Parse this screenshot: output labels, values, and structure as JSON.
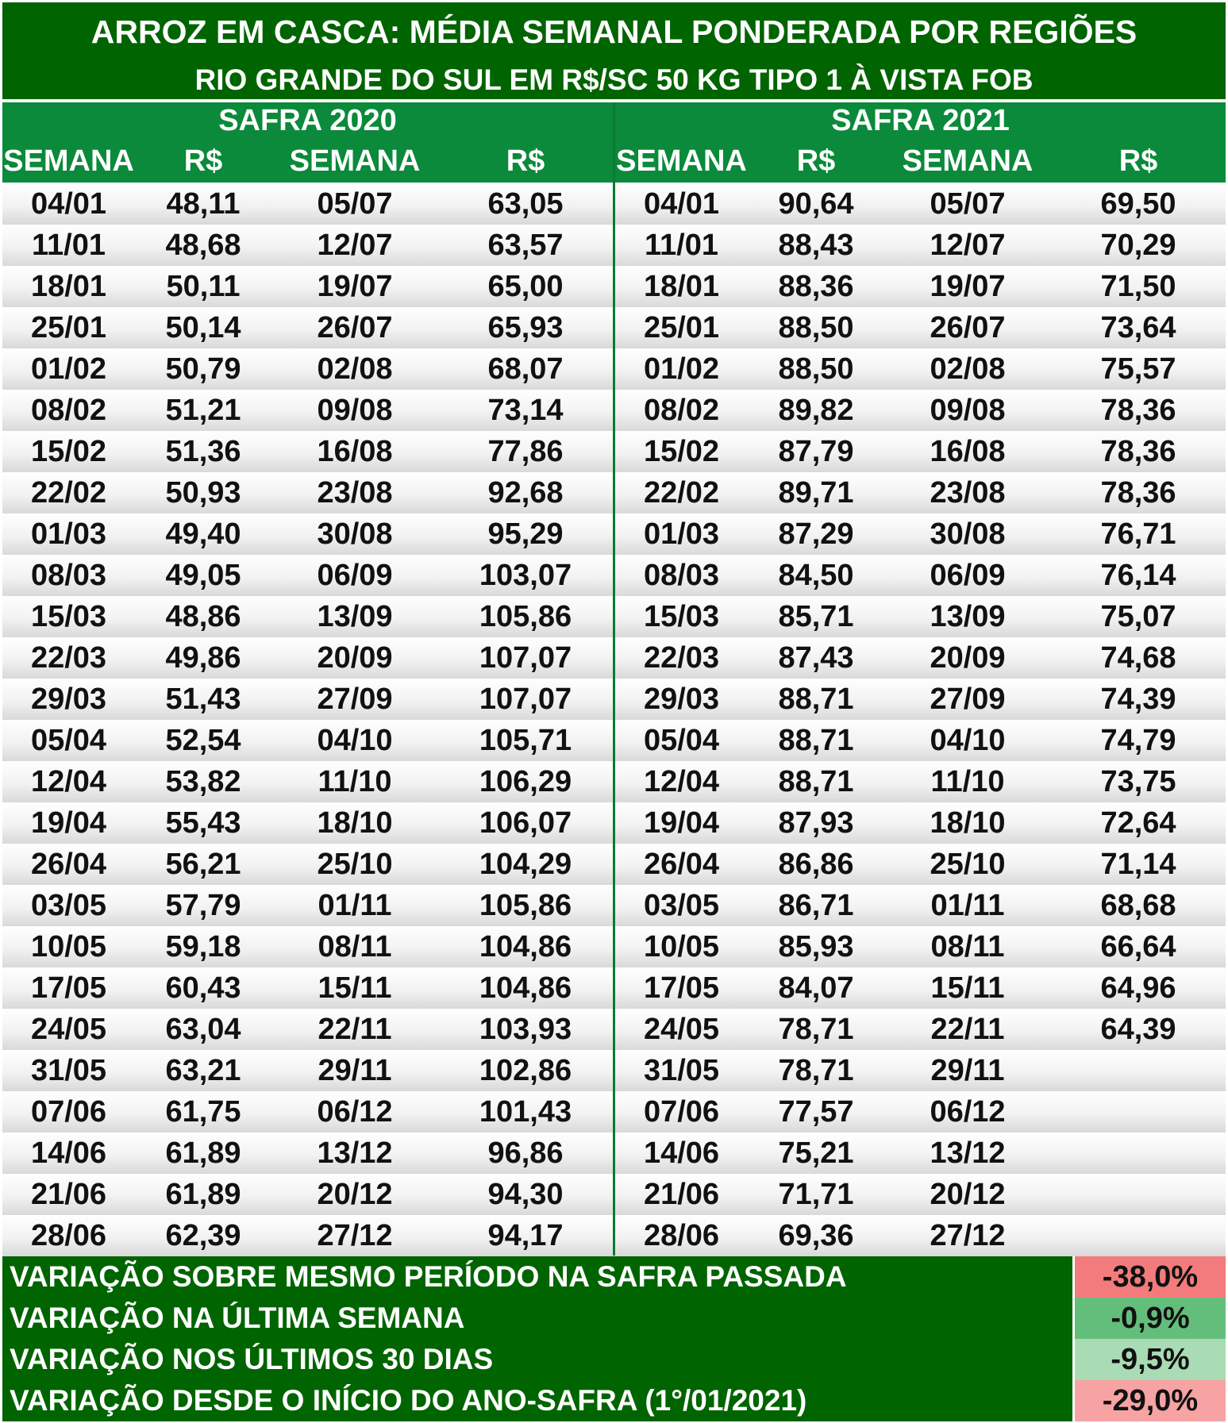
{
  "title": "ARROZ EM CASCA: MÉDIA SEMANAL PONDERADA POR REGIÕES",
  "subtitle": "RIO GRANDE DO SUL EM R$/SC 50 KG TIPO 1 À VISTA FOB",
  "safra_2020": {
    "label": "SAFRA 2020",
    "headers": [
      "SEMANA",
      "R$",
      "SEMANA",
      "R$"
    ]
  },
  "safra_2021": {
    "label": "SAFRA 2021",
    "headers": [
      "SEMANA",
      "R$",
      "SEMANA",
      "R$"
    ]
  },
  "rows": [
    [
      "04/01",
      "48,11",
      "05/07",
      "63,05",
      "04/01",
      "90,64",
      "05/07",
      "69,50"
    ],
    [
      "11/01",
      "48,68",
      "12/07",
      "63,57",
      "11/01",
      "88,43",
      "12/07",
      "70,29"
    ],
    [
      "18/01",
      "50,11",
      "19/07",
      "65,00",
      "18/01",
      "88,36",
      "19/07",
      "71,50"
    ],
    [
      "25/01",
      "50,14",
      "26/07",
      "65,93",
      "25/01",
      "88,50",
      "26/07",
      "73,64"
    ],
    [
      "01/02",
      "50,79",
      "02/08",
      "68,07",
      "01/02",
      "88,50",
      "02/08",
      "75,57"
    ],
    [
      "08/02",
      "51,21",
      "09/08",
      "73,14",
      "08/02",
      "89,82",
      "09/08",
      "78,36"
    ],
    [
      "15/02",
      "51,36",
      "16/08",
      "77,86",
      "15/02",
      "87,79",
      "16/08",
      "78,36"
    ],
    [
      "22/02",
      "50,93",
      "23/08",
      "92,68",
      "22/02",
      "89,71",
      "23/08",
      "78,36"
    ],
    [
      "01/03",
      "49,40",
      "30/08",
      "95,29",
      "01/03",
      "87,29",
      "30/08",
      "76,71"
    ],
    [
      "08/03",
      "49,05",
      "06/09",
      "103,07",
      "08/03",
      "84,50",
      "06/09",
      "76,14"
    ],
    [
      "15/03",
      "48,86",
      "13/09",
      "105,86",
      "15/03",
      "85,71",
      "13/09",
      "75,07"
    ],
    [
      "22/03",
      "49,86",
      "20/09",
      "107,07",
      "22/03",
      "87,43",
      "20/09",
      "74,68"
    ],
    [
      "29/03",
      "51,43",
      "27/09",
      "107,07",
      "29/03",
      "88,71",
      "27/09",
      "74,39"
    ],
    [
      "05/04",
      "52,54",
      "04/10",
      "105,71",
      "05/04",
      "88,71",
      "04/10",
      "74,79"
    ],
    [
      "12/04",
      "53,82",
      "11/10",
      "106,29",
      "12/04",
      "88,71",
      "11/10",
      "73,75"
    ],
    [
      "19/04",
      "55,43",
      "18/10",
      "106,07",
      "19/04",
      "87,93",
      "18/10",
      "72,64"
    ],
    [
      "26/04",
      "56,21",
      "25/10",
      "104,29",
      "26/04",
      "86,86",
      "25/10",
      "71,14"
    ],
    [
      "03/05",
      "57,79",
      "01/11",
      "105,86",
      "03/05",
      "86,71",
      "01/11",
      "68,68"
    ],
    [
      "10/05",
      "59,18",
      "08/11",
      "104,86",
      "10/05",
      "85,93",
      "08/11",
      "66,64"
    ],
    [
      "17/05",
      "60,43",
      "15/11",
      "104,86",
      "17/05",
      "84,07",
      "15/11",
      "64,96"
    ],
    [
      "24/05",
      "63,04",
      "22/11",
      "103,93",
      "24/05",
      "78,71",
      "22/11",
      "64,39"
    ],
    [
      "31/05",
      "63,21",
      "29/11",
      "102,86",
      "31/05",
      "78,71",
      "29/11",
      ""
    ],
    [
      "07/06",
      "61,75",
      "06/12",
      "101,43",
      "07/06",
      "77,57",
      "06/12",
      ""
    ],
    [
      "14/06",
      "61,89",
      "13/12",
      "96,86",
      "14/06",
      "75,21",
      "13/12",
      ""
    ],
    [
      "21/06",
      "61,89",
      "20/12",
      "94,30",
      "21/06",
      "71,71",
      "20/12",
      ""
    ],
    [
      "28/06",
      "62,39",
      "27/12",
      "94,17",
      "28/06",
      "69,36",
      "27/12",
      ""
    ]
  ],
  "footer": [
    {
      "label": "VARIAÇÃO SOBRE MESMO PERÍODO NA SAFRA PASSADA",
      "value": "-38,0%",
      "color": "#f37b7b"
    },
    {
      "label": "VARIAÇÃO NA ÚLTIMA SEMANA",
      "value": "-0,9%",
      "color": "#63be7b"
    },
    {
      "label": "VARIAÇÃO NOS ÚLTIMOS 30 DIAS",
      "value": "-9,5%",
      "color": "#a9dbb5"
    },
    {
      "label": "VARIAÇÃO DESDE O INÍCIO DO ANO-SAFRA (1°/01/2021)",
      "value": "-29,0%",
      "color": "#f7a3a3"
    }
  ]
}
